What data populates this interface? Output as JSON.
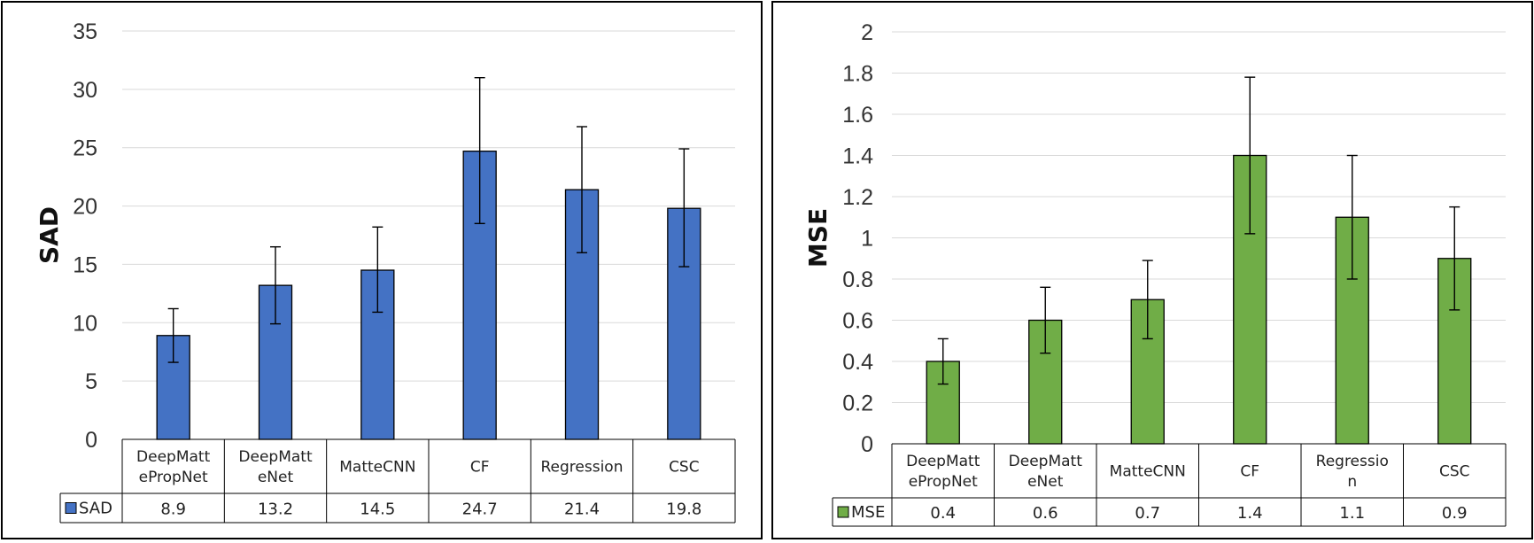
{
  "chart_data": [
    {
      "type": "bar",
      "ylabel": "SAD",
      "xlabel": "",
      "title": "",
      "ylim": [
        0,
        35
      ],
      "yticks": [
        "0",
        "5",
        "10",
        "15",
        "20",
        "25",
        "30",
        "35"
      ],
      "ytick_values": [
        0,
        5,
        10,
        15,
        20,
        25,
        30,
        35
      ],
      "categories": [
        [
          "DeepMatt",
          "ePropNet"
        ],
        [
          "DeepMatt",
          "eNet"
        ],
        [
          "MatteCNN"
        ],
        [
          "CF"
        ],
        [
          "Regression"
        ],
        [
          "CSC"
        ]
      ],
      "series": [
        {
          "name": "SAD",
          "values": [
            8.9,
            13.2,
            14.5,
            24.7,
            21.4,
            19.8
          ],
          "labels": [
            "8.9",
            "13.2",
            "14.5",
            "24.7",
            "21.4",
            "19.8"
          ],
          "err_low": [
            6.6,
            9.9,
            10.9,
            18.5,
            16.0,
            14.8
          ],
          "err_high": [
            11.2,
            16.5,
            18.2,
            31.0,
            26.8,
            24.9
          ],
          "color": "#4472C4"
        }
      ],
      "grid": true,
      "legend": "data-table"
    },
    {
      "type": "bar",
      "ylabel": "MSE",
      "xlabel": "",
      "title": "",
      "ylim": [
        0,
        2
      ],
      "yticks": [
        "0",
        "0.2",
        "0.4",
        "0.6",
        "0.8",
        "1",
        "1.2",
        "1.4",
        "1.6",
        "1.8",
        "2"
      ],
      "ytick_values": [
        0,
        0.2,
        0.4,
        0.6,
        0.8,
        1,
        1.2,
        1.4,
        1.6,
        1.8,
        2
      ],
      "categories": [
        [
          "DeepMatt",
          "ePropNet"
        ],
        [
          "DeepMatt",
          "eNet"
        ],
        [
          "MatteCNN"
        ],
        [
          "CF"
        ],
        [
          "Regressio",
          "n"
        ],
        [
          "CSC"
        ]
      ],
      "series": [
        {
          "name": "MSE",
          "values": [
            0.4,
            0.6,
            0.7,
            1.4,
            1.1,
            0.9
          ],
          "labels": [
            "0.4",
            "0.6",
            "0.7",
            "1.4",
            "1.1",
            "0.9"
          ],
          "err_low": [
            0.29,
            0.44,
            0.51,
            1.02,
            0.8,
            0.65
          ],
          "err_high": [
            0.51,
            0.76,
            0.89,
            1.78,
            1.4,
            1.15
          ],
          "color": "#70AD47"
        }
      ],
      "grid": true,
      "legend": "data-table"
    }
  ]
}
